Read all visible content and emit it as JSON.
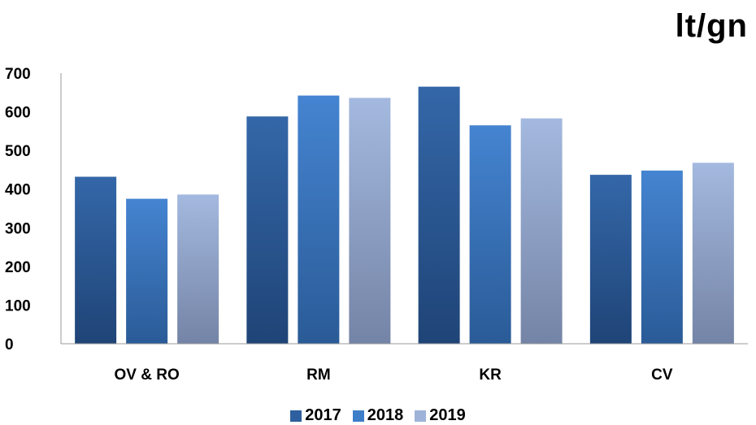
{
  "chart_data": {
    "type": "bar",
    "unit": "lt/gn",
    "categories": [
      "OV & RO",
      "RM",
      "KR",
      "CV"
    ],
    "series": [
      {
        "name": "2017",
        "values": [
          432,
          588,
          665,
          437
        ],
        "color": "#2e5f9e"
      },
      {
        "name": "2018",
        "values": [
          375,
          642,
          565,
          448
        ],
        "color": "#3e7ec9"
      },
      {
        "name": "2019",
        "values": [
          386,
          636,
          583,
          468
        ],
        "color": "#9fb3d9"
      }
    ],
    "ylim": [
      0,
      700
    ],
    "yticks": [
      "0",
      "100",
      "200",
      "300",
      "400",
      "500",
      "600",
      "700"
    ],
    "grid": false,
    "legend_position": "bottom"
  }
}
